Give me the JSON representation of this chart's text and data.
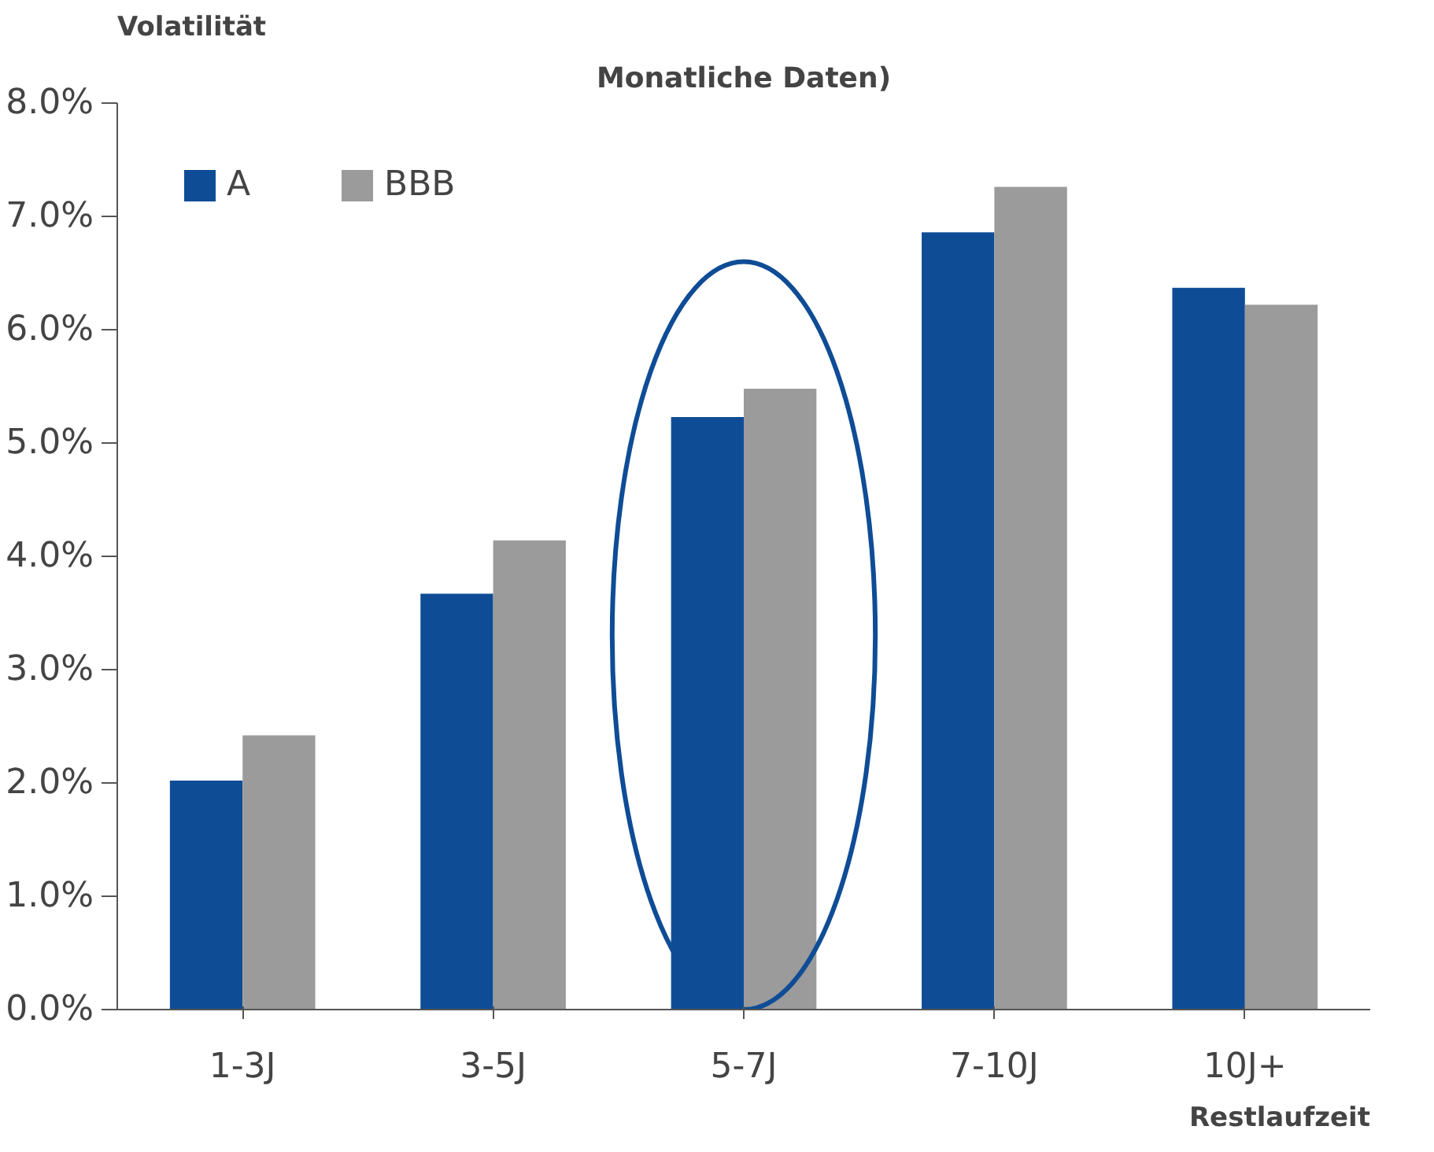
{
  "chart_data": {
    "type": "bar",
    "title": "Monatliche Daten)",
    "ylabel": "Volatilität",
    "xlabel": "Restlaufzeit",
    "categories": [
      "1-3J",
      "3-5J",
      "5-7J",
      "7-10J",
      "10J+"
    ],
    "series": [
      {
        "name": "A",
        "color": "#0f4c96",
        "values": [
          2.02,
          3.67,
          5.23,
          6.86,
          6.37
        ]
      },
      {
        "name": "BBB",
        "color": "#9b9b9b",
        "values": [
          2.42,
          4.14,
          5.48,
          7.26,
          6.22
        ]
      }
    ],
    "ylim": [
      0,
      8
    ],
    "yticks": [
      {
        "value": 0,
        "label": "0.0%"
      },
      {
        "value": 1,
        "label": "1.0%"
      },
      {
        "value": 2,
        "label": "2.0%"
      },
      {
        "value": 3,
        "label": "3.0%"
      },
      {
        "value": 4,
        "label": "4.0%"
      },
      {
        "value": 5,
        "label": "5.0%"
      },
      {
        "value": 6,
        "label": "6.0%"
      },
      {
        "value": 7,
        "label": "7.0%"
      },
      {
        "value": 8,
        "label": "8.0%"
      }
    ],
    "grid": false,
    "legend": "top left"
  }
}
